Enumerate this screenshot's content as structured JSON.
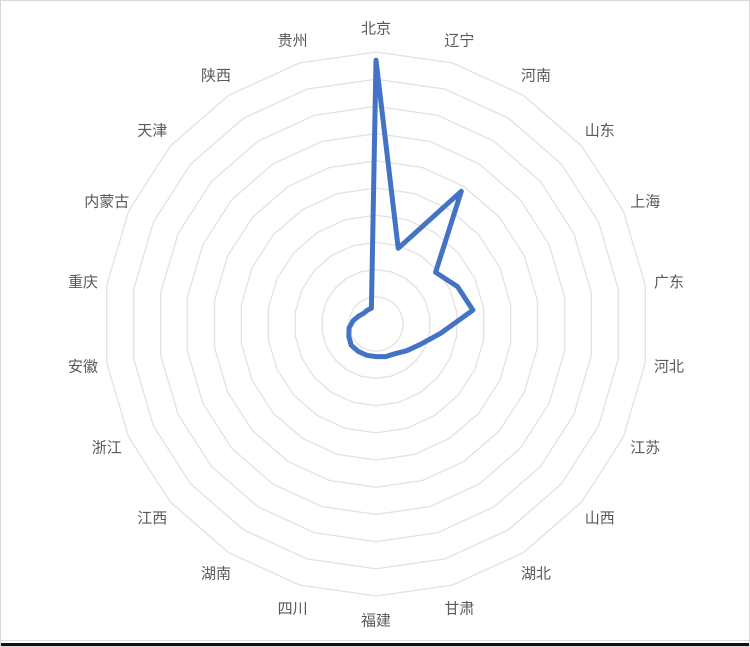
{
  "chart_data": {
    "type": "radar",
    "title": "",
    "categories": [
      "北京",
      "辽宁",
      "河南",
      "山东",
      "上海",
      "广东",
      "河北",
      "江苏",
      "山西",
      "湖北",
      "甘肃",
      "福建",
      "四川",
      "湖南",
      "江西",
      "浙江",
      "安徽",
      "重庆",
      "内蒙古",
      "天津",
      "陕西",
      "贵州"
    ],
    "series": [
      {
        "values": [
          97,
          29,
          58,
          29,
          33,
          36,
          24,
          18,
          15,
          13,
          12.5,
          12,
          12,
          12,
          12,
          11,
          10,
          8.5,
          7,
          6,
          6,
          6
        ]
      }
    ],
    "value_range": [
      0,
      100
    ],
    "ring_count": 10,
    "grid_shape": "polygon",
    "grid_on": true,
    "legend_position": "none",
    "axis_tick_labels": "none"
  },
  "colors": {
    "series_line": "#4472C4",
    "grid_line": "#E2E2E2",
    "axis_label": "#595959",
    "background": "#FFFFFF",
    "frame_border": "#D8D8D8",
    "bottom_bar": "#111111"
  }
}
